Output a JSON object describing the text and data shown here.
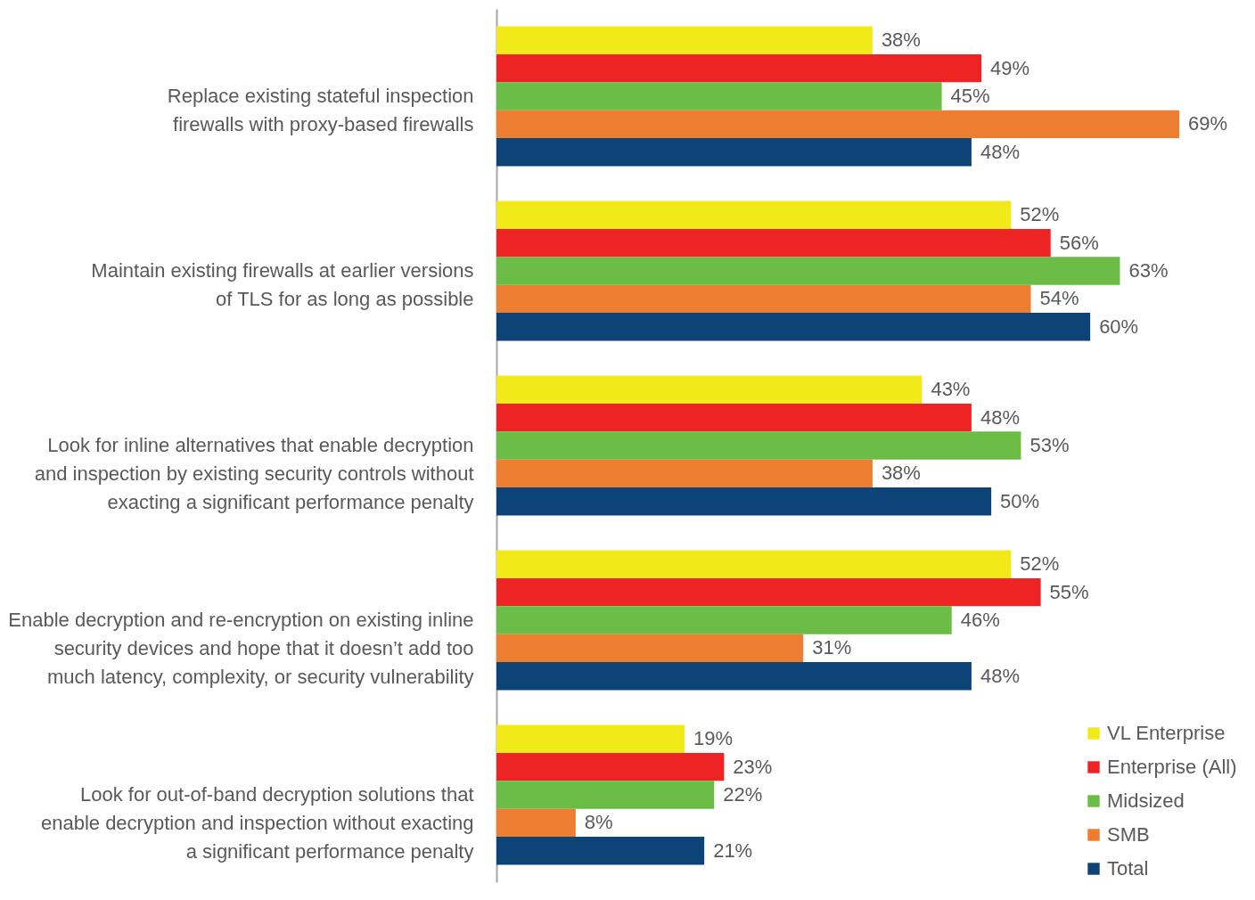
{
  "chart_data": {
    "type": "bar",
    "orientation": "horizontal",
    "categories": [
      "Replace existing stateful inspection\nfirewalls with proxy-based firewalls",
      "Maintain existing firewalls at earlier versions\nof TLS for as long as possible",
      "Look for inline alternatives that enable decryption\nand inspection by existing security controls without\nexacting a significant performance penalty",
      "Enable decryption and re-encryption on existing inline\nsecurity devices and hope that it doesn’t add too\nmuch latency, complexity, or security vulnerability",
      "Look for out-of-band decryption solutions that\nenable decryption and inspection without exacting\na significant performance penalty"
    ],
    "series": [
      {
        "name": "VL Enterprise",
        "color": "#f2e918",
        "values": [
          38,
          52,
          43,
          52,
          19
        ],
        "value_labels": [
          "38%",
          "52%",
          "43%",
          "52%",
          "19%"
        ]
      },
      {
        "name": "Enterprise (All)",
        "color": "#ee2424",
        "values": [
          49,
          56,
          48,
          55,
          23
        ],
        "value_labels": [
          "49%",
          "56%",
          "48%",
          "55%",
          "23%"
        ]
      },
      {
        "name": "Midsized",
        "color": "#6bbd45",
        "values": [
          45,
          63,
          53,
          46,
          22
        ],
        "value_labels": [
          "45%",
          "63%",
          "53%",
          "46%",
          "22%"
        ]
      },
      {
        "name": "SMB",
        "color": "#ed7d31",
        "values": [
          69,
          54,
          38,
          31,
          8
        ],
        "value_labels": [
          "69%",
          "54%",
          "38%",
          "31%",
          "8%"
        ]
      },
      {
        "name": "Total",
        "color": "#0d4477",
        "values": [
          48,
          60,
          50,
          48,
          21
        ],
        "value_labels": [
          "48%",
          "60%",
          "50%",
          "48%",
          "21%"
        ]
      }
    ],
    "tick_labels": "y",
    "legend": "bottom right"
  }
}
